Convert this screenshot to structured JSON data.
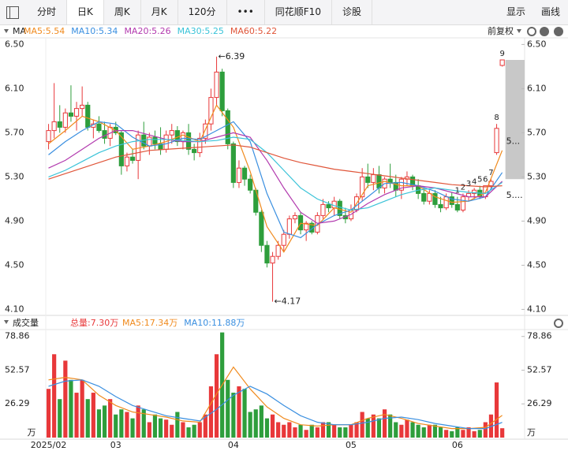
{
  "toolbar": {
    "tabs": [
      "分时",
      "日K",
      "周K",
      "月K",
      "120分",
      "•••",
      "同花顺F10",
      "诊股"
    ],
    "right": [
      "显示",
      "画线"
    ],
    "selected": "日K"
  },
  "chart_data": [
    {
      "type": "candlestick",
      "title": "MA",
      "adjust_label": "前复权",
      "up_color": "#e8383a",
      "down_color": "#2e9e3c",
      "open": [
        5.62,
        5.72,
        5.8,
        5.75,
        5.88,
        5.85,
        5.92,
        5.95,
        5.75,
        5.78,
        5.72,
        5.65,
        5.75,
        5.7,
        5.4,
        5.48,
        5.45,
        5.68,
        5.58,
        5.66,
        5.6,
        5.55,
        5.68,
        5.72,
        5.62,
        5.7,
        5.55,
        5.52,
        5.65,
        5.78,
        6.02,
        6.25,
        5.9,
        5.6,
        5.25,
        5.38,
        5.28,
        5.18,
        4.98,
        4.68,
        4.52,
        4.58,
        4.68,
        4.78,
        4.92,
        4.95,
        4.82,
        4.88,
        4.8,
        4.95,
        5.05,
        5.02,
        5.08,
        4.95,
        4.92,
        5.0,
        5.12,
        5.3,
        5.25,
        5.32,
        5.2,
        5.28,
        5.25,
        5.18,
        5.28,
        5.3,
        5.22,
        5.15,
        5.08,
        5.15,
        5.05,
        5.02,
        5.12,
        5.05,
        5.0,
        5.12,
        5.15,
        5.18,
        5.12,
        5.22,
        5.52,
        6.31
      ],
      "high": [
        5.78,
        6.15,
        5.95,
        5.92,
        6.13,
        5.98,
        6.12,
        5.98,
        5.82,
        5.85,
        5.8,
        5.78,
        5.8,
        5.72,
        5.52,
        5.55,
        5.72,
        5.8,
        5.7,
        5.72,
        5.75,
        5.72,
        5.78,
        5.76,
        5.72,
        5.78,
        5.6,
        5.7,
        5.82,
        6.1,
        6.39,
        6.28,
        5.92,
        5.62,
        5.45,
        5.4,
        5.32,
        5.2,
        5.0,
        4.72,
        4.62,
        4.72,
        4.82,
        4.95,
        4.98,
        4.98,
        4.9,
        4.9,
        4.98,
        5.1,
        5.08,
        5.12,
        5.1,
        5.02,
        5.05,
        5.15,
        5.38,
        5.42,
        5.38,
        5.4,
        5.3,
        5.42,
        5.32,
        5.3,
        5.35,
        5.32,
        5.28,
        5.2,
        5.18,
        5.18,
        5.12,
        5.15,
        5.16,
        5.12,
        5.15,
        5.18,
        5.2,
        5.22,
        5.22,
        5.28,
        5.78,
        6.36
      ],
      "low": [
        5.55,
        5.65,
        5.7,
        5.7,
        5.8,
        5.72,
        5.85,
        5.72,
        5.65,
        5.7,
        5.6,
        5.58,
        5.68,
        5.32,
        5.35,
        5.42,
        5.28,
        5.55,
        5.5,
        5.55,
        5.5,
        5.52,
        5.6,
        5.58,
        5.55,
        5.5,
        5.45,
        5.48,
        5.6,
        5.72,
        5.95,
        5.85,
        5.55,
        5.2,
        5.2,
        5.22,
        5.15,
        4.95,
        4.62,
        4.48,
        4.17,
        4.55,
        4.62,
        4.74,
        4.88,
        4.78,
        4.72,
        4.78,
        4.78,
        4.92,
        4.98,
        4.95,
        4.92,
        4.88,
        4.9,
        4.98,
        5.08,
        5.2,
        5.18,
        5.15,
        5.15,
        5.2,
        5.12,
        5.1,
        5.22,
        5.18,
        5.1,
        5.05,
        5.05,
        5.02,
        4.98,
        5.0,
        5.02,
        4.98,
        4.98,
        5.08,
        5.1,
        5.1,
        5.1,
        5.18,
        5.5,
        6.3
      ],
      "close": [
        5.72,
        5.8,
        5.75,
        5.88,
        5.85,
        5.92,
        5.95,
        5.75,
        5.78,
        5.72,
        5.65,
        5.75,
        5.7,
        5.4,
        5.48,
        5.45,
        5.68,
        5.58,
        5.66,
        5.6,
        5.55,
        5.68,
        5.72,
        5.62,
        5.7,
        5.55,
        5.52,
        5.65,
        5.78,
        6.02,
        6.25,
        5.9,
        5.6,
        5.25,
        5.38,
        5.28,
        5.18,
        4.98,
        4.68,
        4.52,
        4.58,
        4.68,
        4.78,
        4.92,
        4.95,
        4.82,
        4.88,
        4.8,
        4.95,
        5.05,
        5.02,
        5.08,
        4.95,
        4.92,
        5.0,
        5.12,
        5.3,
        5.25,
        5.32,
        5.2,
        5.28,
        5.25,
        5.18,
        5.28,
        5.3,
        5.22,
        5.15,
        5.08,
        5.15,
        5.05,
        5.02,
        5.12,
        5.05,
        5.0,
        5.12,
        5.15,
        5.18,
        5.12,
        5.22,
        5.26,
        5.74,
        6.36
      ],
      "ylim": [
        4.06,
        6.56
      ],
      "yticks": [
        {
          "value": 4.1,
          "label": "4.10"
        },
        {
          "value": 4.5,
          "label": "4.50"
        },
        {
          "value": 4.9,
          "label": "4.90"
        },
        {
          "value": 5.3,
          "label": "5.30"
        },
        {
          "value": 5.7,
          "label": "5.70"
        },
        {
          "value": 6.1,
          "label": "6.10"
        },
        {
          "value": 6.5,
          "label": "6.50"
        }
      ],
      "annotations": [
        {
          "label": "←6.39",
          "value": 6.39
        },
        {
          "label": "←4.17",
          "value": 4.17
        }
      ],
      "sequence_labels": [
        "1",
        "2",
        "3",
        "4",
        "5",
        "6",
        "7",
        "8",
        "9"
      ],
      "price_tags": [
        {
          "label": "5...",
          "value": 5.62
        },
        {
          "label": "5....",
          "value": 5.13
        }
      ],
      "gap_zone": [
        5.28,
        6.36
      ],
      "series": [
        {
          "name": "MA5:5.54",
          "color": "#f08a1d",
          "x": [
            0,
            3,
            6,
            9,
            12,
            15,
            18,
            21,
            24,
            27,
            30,
            33,
            36,
            39,
            42,
            45,
            48,
            51,
            54,
            57,
            60,
            63,
            66,
            69,
            72,
            75,
            78,
            81
          ],
          "values": [
            5.6,
            5.72,
            5.85,
            5.8,
            5.72,
            5.55,
            5.58,
            5.62,
            5.68,
            5.62,
            5.95,
            5.75,
            5.35,
            4.85,
            4.62,
            4.88,
            4.86,
            5.02,
            4.98,
            5.22,
            5.26,
            5.22,
            5.22,
            5.12,
            5.07,
            5.08,
            5.16,
            5.54
          ]
        },
        {
          "name": "MA10:5.34",
          "color": "#3a8fe0",
          "x": [
            0,
            3,
            6,
            9,
            12,
            15,
            18,
            21,
            24,
            27,
            30,
            33,
            36,
            39,
            42,
            45,
            48,
            51,
            54,
            57,
            60,
            63,
            66,
            69,
            72,
            75,
            78,
            81
          ],
          "values": [
            5.5,
            5.62,
            5.72,
            5.8,
            5.78,
            5.66,
            5.58,
            5.6,
            5.65,
            5.64,
            5.72,
            5.8,
            5.62,
            5.15,
            4.8,
            4.75,
            4.87,
            4.95,
            5.0,
            5.12,
            5.24,
            5.25,
            5.22,
            5.17,
            5.1,
            5.08,
            5.12,
            5.34
          ]
        },
        {
          "name": "MA20:5.26",
          "color": "#b23aae",
          "x": [
            0,
            3,
            6,
            9,
            12,
            15,
            18,
            21,
            24,
            27,
            30,
            33,
            36,
            39,
            42,
            45,
            48,
            51,
            54,
            57,
            60,
            63,
            66,
            69,
            72,
            75,
            78,
            81
          ],
          "values": [
            5.38,
            5.45,
            5.55,
            5.65,
            5.72,
            5.72,
            5.68,
            5.64,
            5.62,
            5.62,
            5.66,
            5.7,
            5.66,
            5.45,
            5.2,
            4.98,
            4.88,
            4.9,
            4.96,
            5.06,
            5.14,
            5.2,
            5.22,
            5.2,
            5.16,
            5.12,
            5.12,
            5.26
          ]
        },
        {
          "name": "MA30:5.25",
          "color": "#3ac3d8",
          "x": [
            0,
            3,
            6,
            9,
            12,
            15,
            18,
            21,
            24,
            27,
            30,
            33,
            36,
            39,
            42,
            45,
            48,
            51,
            54,
            57,
            60,
            63,
            66,
            69,
            72,
            75,
            78,
            81
          ],
          "values": [
            5.3,
            5.36,
            5.44,
            5.52,
            5.58,
            5.62,
            5.64,
            5.64,
            5.63,
            5.62,
            5.63,
            5.66,
            5.64,
            5.52,
            5.36,
            5.2,
            5.1,
            5.04,
            5.0,
            5.02,
            5.08,
            5.14,
            5.18,
            5.2,
            5.18,
            5.16,
            5.15,
            5.25
          ]
        },
        {
          "name": "MA60:5.22",
          "color": "#e0563a",
          "x": [
            0,
            3,
            6,
            9,
            12,
            15,
            18,
            21,
            24,
            27,
            30,
            33,
            36,
            39,
            42,
            45,
            48,
            51,
            54,
            57,
            60,
            63,
            66,
            69,
            72,
            75,
            78,
            81
          ],
          "values": [
            5.28,
            5.33,
            5.38,
            5.43,
            5.48,
            5.51,
            5.54,
            5.55,
            5.56,
            5.57,
            5.58,
            5.59,
            5.57,
            5.52,
            5.47,
            5.43,
            5.4,
            5.37,
            5.35,
            5.33,
            5.31,
            5.29,
            5.27,
            5.25,
            5.23,
            5.22,
            5.21,
            5.22
          ]
        }
      ]
    },
    {
      "type": "bar",
      "title": "成交量",
      "summary": "总量:7.30万",
      "unit": "万",
      "categories": [
        "2025/02",
        null,
        null,
        null,
        null,
        null,
        null,
        null,
        null,
        null,
        null,
        null,
        "03",
        null,
        null,
        null,
        null,
        null,
        null,
        null,
        null,
        null,
        null,
        null,
        null,
        null,
        null,
        null,
        null,
        null,
        null,
        null,
        null,
        "04",
        null,
        null,
        null,
        null,
        null,
        null,
        null,
        null,
        null,
        null,
        null,
        null,
        null,
        null,
        null,
        null,
        null,
        null,
        null,
        null,
        "05",
        null,
        null,
        null,
        null,
        null,
        null,
        null,
        null,
        null,
        null,
        null,
        null,
        null,
        null,
        null,
        null,
        null,
        null,
        "06",
        null,
        null,
        null,
        null,
        null,
        null,
        null,
        null
      ],
      "values": [
        38,
        65,
        30,
        60,
        45,
        35,
        45,
        30,
        35,
        22,
        25,
        30,
        18,
        22,
        20,
        15,
        25,
        22,
        12,
        18,
        15,
        14,
        10,
        20,
        12,
        8,
        10,
        12,
        18,
        40,
        65,
        82,
        45,
        35,
        40,
        38,
        20,
        22,
        25,
        15,
        18,
        12,
        10,
        12,
        8,
        10,
        6,
        10,
        8,
        12,
        12,
        10,
        8,
        8,
        10,
        12,
        20,
        15,
        18,
        15,
        22,
        18,
        12,
        10,
        14,
        12,
        10,
        8,
        10,
        10,
        8,
        6,
        5,
        8,
        6,
        8,
        5,
        6,
        12,
        18,
        43,
        7.3
      ],
      "ylim": [
        0,
        83
      ],
      "yticks": [
        26.29,
        52.57,
        78.86
      ],
      "series": [
        {
          "name": "MA5:17.34万",
          "color": "#f08a1d",
          "x": [
            0,
            3,
            6,
            9,
            12,
            15,
            18,
            21,
            24,
            27,
            30,
            33,
            36,
            39,
            42,
            45,
            48,
            51,
            54,
            57,
            60,
            63,
            66,
            69,
            72,
            75,
            78,
            81
          ],
          "values": [
            45,
            47,
            45,
            33,
            25,
            20,
            18,
            16,
            13,
            12,
            34,
            55,
            38,
            24,
            15,
            10,
            9,
            10,
            10,
            15,
            18,
            15,
            11,
            9,
            7,
            7,
            8,
            17.34
          ]
        },
        {
          "name": "MA10:11.88万",
          "color": "#3a8fe0",
          "x": [
            0,
            3,
            6,
            9,
            12,
            15,
            18,
            21,
            24,
            27,
            30,
            33,
            36,
            39,
            42,
            45,
            48,
            51,
            54,
            57,
            60,
            63,
            66,
            69,
            72,
            75,
            78,
            81
          ],
          "values": [
            40,
            44,
            45,
            40,
            32,
            25,
            21,
            17,
            15,
            13,
            22,
            33,
            40,
            34,
            25,
            17,
            12,
            10,
            10,
            12,
            15,
            16,
            14,
            11,
            9,
            7,
            7,
            11.88
          ]
        }
      ]
    }
  ]
}
